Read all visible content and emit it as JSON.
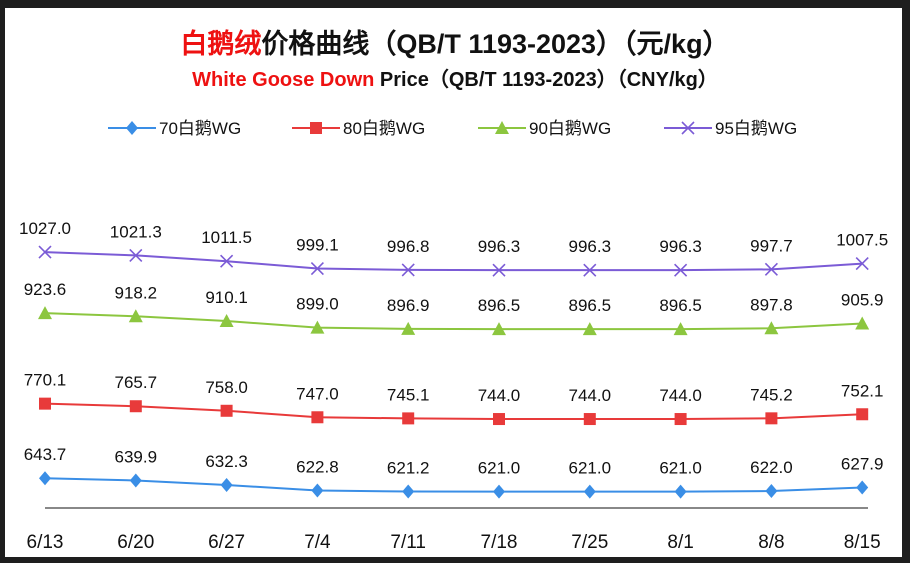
{
  "chart_data": {
    "type": "line",
    "title_red": "白鹅绒",
    "title_rest": "价格曲线（QB/T 1193-2023）（元/kg）",
    "subtitle_red": "White Goose Down",
    "subtitle_rest": " Price（QB/T 1193-2023）（CNY/kg）",
    "xlabel": "",
    "ylabel": "",
    "ylim": [
      590,
      1050
    ],
    "grid": false,
    "legend_position": "top",
    "categories": [
      "6/13",
      "6/20",
      "6/27",
      "7/4",
      "7/11",
      "7/18",
      "7/25",
      "8/1",
      "8/8",
      "8/15"
    ],
    "series": [
      {
        "name": "70白鹅WG",
        "color": "#3a8ee6",
        "marker": "diamond",
        "values": [
          643.7,
          639.9,
          632.3,
          622.8,
          621.2,
          621.0,
          621.0,
          621.0,
          622.0,
          627.9
        ],
        "labels": [
          "643.7",
          "639.9",
          "632.3",
          "622.8",
          "621.2",
          "621.0",
          "621.0",
          "621.0",
          "622.0",
          "627.9"
        ]
      },
      {
        "name": "80白鹅WG",
        "color": "#e83a3a",
        "marker": "square",
        "values": [
          770.1,
          765.7,
          758.0,
          747.0,
          745.1,
          744.0,
          744.0,
          744.0,
          745.2,
          752.1
        ],
        "labels": [
          "770.1",
          "765.7",
          "758.0",
          "747.0",
          "745.1",
          "744.0",
          "744.0",
          "744.0",
          "745.2",
          "752.1"
        ]
      },
      {
        "name": "90白鹅WG",
        "color": "#8cc63f",
        "marker": "triangle",
        "values": [
          923.6,
          918.2,
          910.1,
          899.0,
          896.9,
          896.5,
          896.5,
          896.5,
          897.8,
          905.9
        ],
        "labels": [
          "923.6",
          "918.2",
          "910.1",
          "899.0",
          "896.9",
          "896.5",
          "896.5",
          "896.5",
          "897.8",
          "905.9"
        ]
      },
      {
        "name": "95白鹅WG",
        "color": "#7b5bd6",
        "marker": "x",
        "values": [
          1027.0,
          1021.3,
          1011.5,
          999.1,
          996.8,
          996.3,
          996.3,
          996.3,
          997.7,
          1007.5
        ],
        "labels": [
          "1027.0",
          "1021.3",
          "1011.5",
          "999.1",
          "996.8",
          "996.3",
          "996.3",
          "996.3",
          "997.7",
          "1007.5"
        ]
      }
    ]
  }
}
